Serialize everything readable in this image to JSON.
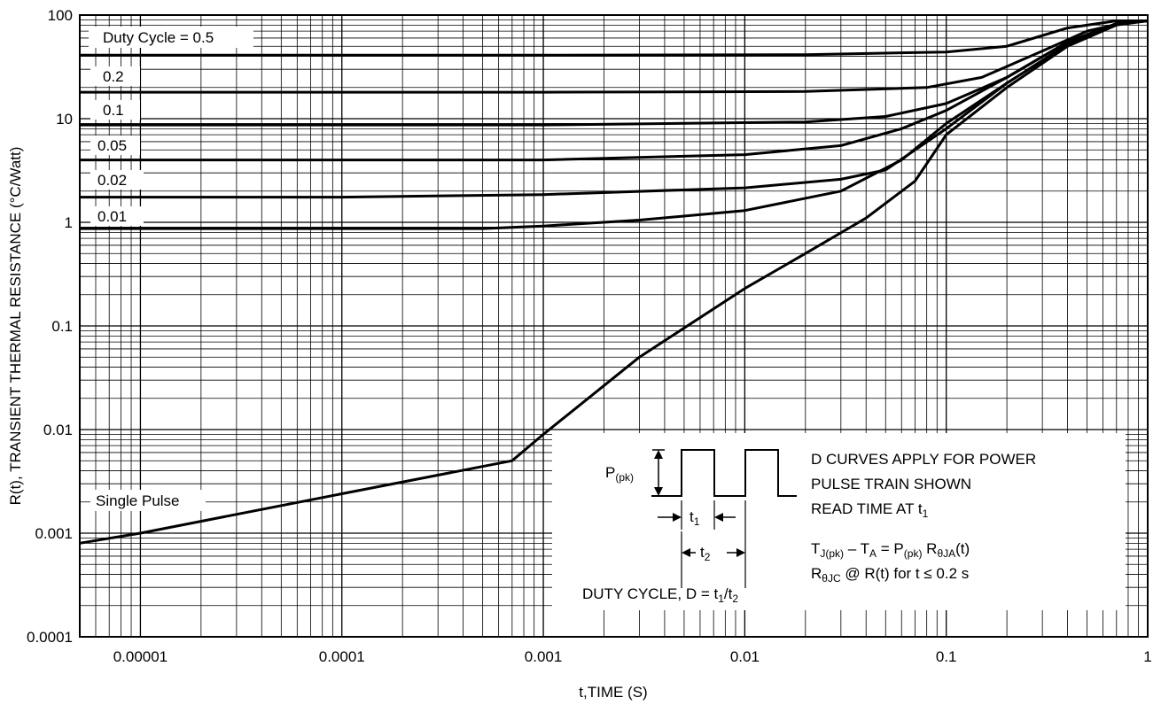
{
  "chart_data": {
    "type": "line",
    "xlabel": "t,TIME (S)",
    "ylabel": "R(t), TRANSIENT THERMAL RESISTANCE (°C/Watt)",
    "x_scale": "log",
    "y_scale": "log",
    "xlim": [
      5e-06,
      1
    ],
    "ylim": [
      0.0001,
      100
    ],
    "grid": true,
    "x_tick_labels": [
      "0.00001",
      "0.0001",
      "0.001",
      "0.01",
      "0.1",
      "1"
    ],
    "y_tick_labels": [
      "0.0001",
      "0.001",
      "0.01",
      "0.1",
      "1",
      "10",
      "100"
    ],
    "series": [
      {
        "name": "Duty Cycle = 0.5",
        "x": [
          5e-06,
          0.001,
          0.02,
          0.1,
          0.2,
          0.4,
          0.7,
          1
        ],
        "y": [
          41,
          41,
          41.5,
          44,
          50,
          75,
          88,
          88
        ]
      },
      {
        "name": "0.2",
        "x": [
          5e-06,
          0.001,
          0.02,
          0.08,
          0.15,
          0.3,
          0.5,
          0.8,
          1
        ],
        "y": [
          18,
          18,
          18.3,
          20,
          25,
          45,
          70,
          86,
          88
        ]
      },
      {
        "name": "0.1",
        "x": [
          5e-06,
          0.001,
          0.02,
          0.05,
          0.1,
          0.2,
          0.4,
          0.7,
          1
        ],
        "y": [
          8.7,
          8.7,
          9.3,
          10.5,
          14,
          25,
          55,
          83,
          88
        ]
      },
      {
        "name": "0.05",
        "x": [
          5e-06,
          0.001,
          0.01,
          0.03,
          0.06,
          0.1,
          0.2,
          0.4,
          0.7,
          1
        ],
        "y": [
          4,
          4,
          4.5,
          5.5,
          8,
          12,
          25,
          55,
          83,
          88
        ]
      },
      {
        "name": "0.02",
        "x": [
          5e-06,
          0.0001,
          0.001,
          0.01,
          0.03,
          0.05,
          0.1,
          0.2,
          0.4,
          0.7,
          1
        ],
        "y": [
          1.75,
          1.75,
          1.85,
          2.15,
          2.6,
          3.2,
          8,
          22,
          52,
          82,
          88
        ]
      },
      {
        "name": "0.01",
        "x": [
          5e-06,
          0.0005,
          0.001,
          0.003,
          0.01,
          0.03,
          0.06,
          0.1,
          0.2,
          0.4,
          0.7,
          1
        ],
        "y": [
          0.87,
          0.87,
          0.92,
          1.05,
          1.3,
          2,
          4,
          9,
          22,
          52,
          82,
          88
        ]
      },
      {
        "name": "Single Pulse",
        "x": [
          5e-06,
          1e-05,
          0.0001,
          0.0007,
          0.001,
          0.003,
          0.01,
          0.02,
          0.04,
          0.07,
          0.1,
          0.2,
          0.4,
          0.7,
          1
        ],
        "y": [
          0.0008,
          0.001,
          0.0024,
          0.005,
          0.009,
          0.05,
          0.23,
          0.5,
          1.1,
          2.5,
          7,
          20,
          50,
          80,
          88
        ]
      }
    ],
    "labels": {
      "dc05": "Duty Cycle = 0.5",
      "dc02": "0.2",
      "dc01": "0.1",
      "dc005": "0.05",
      "dc002": "0.02",
      "dc001": "0.01",
      "single": "Single Pulse"
    },
    "inset": {
      "p_main": "P",
      "p_sub": "(pk)",
      "t1_main": "t",
      "t1_sub": "1",
      "t2_main": "t",
      "t2_sub": "2",
      "duty_main": "DUTY CYCLE, D = t",
      "duty_sub1": "1",
      "duty_slash": "/t",
      "duty_sub2": "2",
      "line1": "D CURVES APPLY FOR POWER",
      "line2": "PULSE TRAIN SHOWN",
      "line3_main": "READ TIME AT t",
      "line3_sub": "1",
      "eq_T": "T",
      "eq_jpk": "J(pk)",
      "eq_minus": " – T",
      "eq_A": "A",
      "eq_eq": " = P",
      "eq_pk": "(pk)",
      "eq_R": " R",
      "eq_thJA": "θJA",
      "eq_t": "(t)",
      "r_R": "R",
      "r_thJC": "θJC",
      "r_rest": " @ R(t) for t ≤ 0.2 s"
    }
  }
}
